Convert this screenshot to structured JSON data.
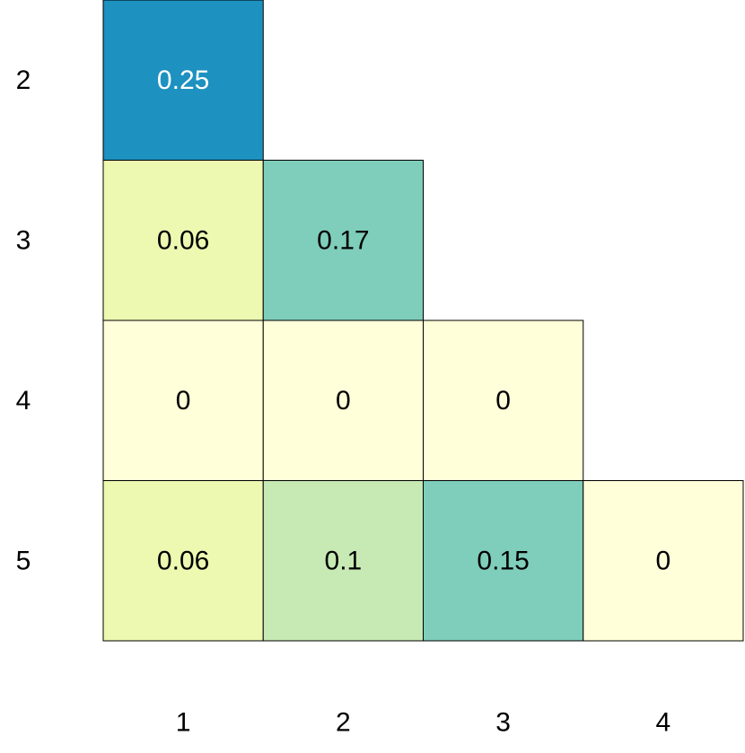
{
  "chart_data": {
    "type": "heatmap",
    "title": "",
    "xlabel": "",
    "ylabel": "",
    "x_categories": [
      "1",
      "2",
      "3",
      "4"
    ],
    "y_categories": [
      "2",
      "3",
      "4",
      "5"
    ],
    "cells": [
      {
        "x": "1",
        "y": "2",
        "value": 0.25,
        "label": "0.25",
        "color": "#1D91C0",
        "text_color": "#FFFFFF"
      },
      {
        "x": "1",
        "y": "3",
        "value": 0.06,
        "label": "0.06",
        "color": "#EDF8B1",
        "text_color": "#000000"
      },
      {
        "x": "2",
        "y": "3",
        "value": 0.17,
        "label": "0.17",
        "color": "#7FCDBB",
        "text_color": "#000000"
      },
      {
        "x": "1",
        "y": "4",
        "value": 0,
        "label": "0",
        "color": "#FFFFD9",
        "text_color": "#000000"
      },
      {
        "x": "2",
        "y": "4",
        "value": 0,
        "label": "0",
        "color": "#FFFFD9",
        "text_color": "#000000"
      },
      {
        "x": "3",
        "y": "4",
        "value": 0,
        "label": "0",
        "color": "#FFFFD9",
        "text_color": "#000000"
      },
      {
        "x": "1",
        "y": "5",
        "value": 0.06,
        "label": "0.06",
        "color": "#EDF8B1",
        "text_color": "#000000"
      },
      {
        "x": "2",
        "y": "5",
        "value": 0.1,
        "label": "0.1",
        "color": "#C7E9B4",
        "text_color": "#000000"
      },
      {
        "x": "3",
        "y": "5",
        "value": 0.15,
        "label": "0.15",
        "color": "#7FCDBB",
        "text_color": "#000000"
      },
      {
        "x": "4",
        "y": "5",
        "value": 0,
        "label": "0",
        "color": "#FFFFD9",
        "text_color": "#000000"
      }
    ],
    "grid": false,
    "legend": "none"
  }
}
